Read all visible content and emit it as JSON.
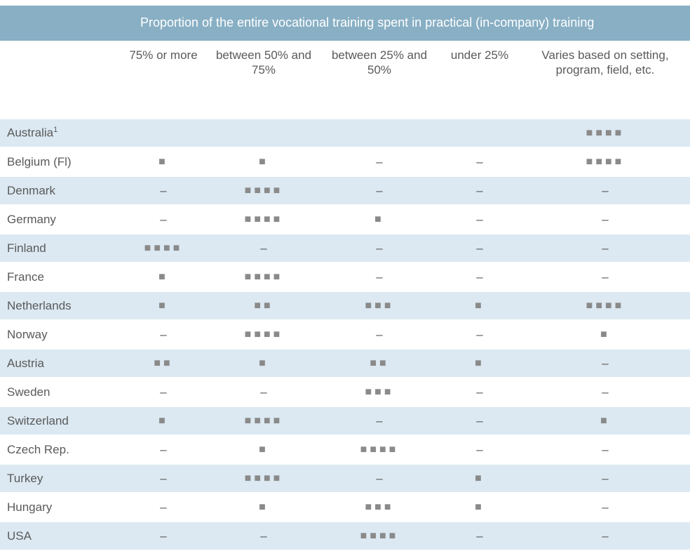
{
  "header": {
    "title": "Proportion of the entire vocational training spent in practical (in-company) training"
  },
  "columns": [
    "75% or more",
    "between 50% and 75%",
    "between 25% and 50%",
    "under 25%",
    "Varies based on setting, program, field, etc."
  ],
  "rows": [
    {
      "country": "Australia",
      "note": "1",
      "cells": [
        "",
        "",
        "",
        "",
        "■■■■"
      ]
    },
    {
      "country": "Belgium (Fl)",
      "cells": [
        "■",
        "■",
        "–",
        "–",
        "■■■■"
      ]
    },
    {
      "country": "Denmark",
      "cells": [
        "–",
        "■■■■",
        "–",
        "–",
        "–"
      ]
    },
    {
      "country": "Germany",
      "cells": [
        "–",
        "■■■■",
        "■",
        "–",
        "–"
      ]
    },
    {
      "country": "Finland",
      "cells": [
        "■■■■",
        "–",
        "–",
        "–",
        "–"
      ]
    },
    {
      "country": "France",
      "cells": [
        "■",
        "■■■■",
        "–",
        "–",
        "–"
      ]
    },
    {
      "country": "Netherlands",
      "cells": [
        "■",
        "■■",
        "■■■",
        "■",
        "■■■■"
      ]
    },
    {
      "country": "Norway",
      "cells": [
        "–",
        "■■■■",
        "–",
        "–",
        "■"
      ]
    },
    {
      "country": "Austria",
      "cells": [
        "■■",
        "■",
        "■■",
        "■",
        "–"
      ]
    },
    {
      "country": "Sweden",
      "cells": [
        "–",
        "–",
        "■■■",
        "–",
        "–"
      ]
    },
    {
      "country": "Switzerland",
      "cells": [
        "■",
        "■■■■",
        "–",
        "–",
        "■"
      ]
    },
    {
      "country": "Czech Rep.",
      "cells": [
        "–",
        "■",
        "■■■■",
        "–",
        "–"
      ]
    },
    {
      "country": "Turkey",
      "cells": [
        "–",
        "■■■■",
        "–",
        "■",
        "–"
      ]
    },
    {
      "country": "Hungary",
      "cells": [
        "–",
        "■",
        "■■■",
        "■",
        "–"
      ]
    },
    {
      "country": "USA",
      "cells": [
        "–",
        "–",
        "■■■■",
        "–",
        "–"
      ]
    }
  ]
}
